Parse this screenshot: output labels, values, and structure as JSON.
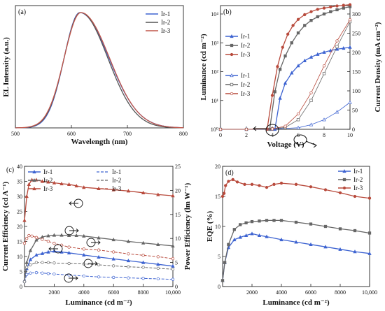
{
  "chart_data": [
    {
      "panel": "(a)",
      "type": "line",
      "xlabel": "Wavelength (nm)",
      "ylabel": "EL Intensity (a.u.)",
      "xlim": [
        500,
        800
      ],
      "xticks": [
        "500",
        "600",
        "700",
        "800"
      ],
      "legend_position": "top-right",
      "series": [
        {
          "name": "Ir-1",
          "color": "#3d63d1",
          "peak": 615,
          "width_left": 28,
          "width_right": 52
        },
        {
          "name": "Ir-2",
          "color": "#555555",
          "peak": 616,
          "width_left": 29,
          "width_right": 49
        },
        {
          "name": "Ir-3",
          "color": "#c0564a",
          "peak": 617,
          "width_left": 30,
          "width_right": 51
        }
      ]
    },
    {
      "panel": "(b)",
      "type": "line",
      "xlabel": "Voltage (V)",
      "ylabel": "Luminance (cd m⁻²)",
      "ylabel_right": "Current Density (mA cm⁻²)",
      "xlim": [
        0,
        10
      ],
      "xticks": [
        "0",
        "2",
        "4",
        "6",
        "8",
        "10"
      ],
      "ylim_log": [
        1,
        10000
      ],
      "yticks_left": [
        "10⁰",
        "10¹",
        "10²",
        "10³",
        "10⁴"
      ],
      "ylim_right": [
        0,
        300
      ],
      "yticks_right": [
        "0",
        "50",
        "100",
        "150",
        "200",
        "250",
        "300"
      ],
      "luminance_series": [
        {
          "name": "Ir-1",
          "color": "#3d63d1",
          "marker": "triangle",
          "x": [
            4.2,
            4.6,
            5,
            5.5,
            6,
            6.5,
            7,
            7.5,
            8,
            8.5,
            9,
            9.5,
            10
          ],
          "y": [
            1,
            12,
            40,
            90,
            160,
            240,
            320,
            400,
            470,
            540,
            600,
            650,
            700
          ]
        },
        {
          "name": "Ir-2",
          "color": "#666666",
          "marker": "square",
          "x": [
            3.8,
            4.2,
            4.6,
            5,
            5.5,
            6,
            6.5,
            7,
            7.5,
            8,
            8.5,
            9,
            9.5,
            10
          ],
          "y": [
            1,
            20,
            120,
            350,
            1000,
            2200,
            4000,
            6000,
            8000,
            10000,
            12000,
            14000,
            16000,
            18000
          ]
        },
        {
          "name": "Ir-3",
          "color": "#b84a3c",
          "marker": "circle",
          "x": [
            3.6,
            4,
            4.4,
            4.8,
            5.2,
            5.6,
            6,
            6.5,
            7,
            7.5,
            8,
            8.5,
            9,
            9.5,
            10
          ],
          "y": [
            1,
            15,
            150,
            700,
            2000,
            4000,
            6500,
            9500,
            12000,
            14500,
            16000,
            17500,
            19000,
            20000,
            21000
          ]
        }
      ],
      "current_series": [
        {
          "name": "Ir-1",
          "color": "#3d63d1",
          "marker": "open-triangle",
          "x": [
            0,
            2,
            4,
            6,
            7,
            8,
            9,
            10
          ],
          "y": [
            0,
            0,
            0.5,
            4,
            12,
            25,
            45,
            70
          ]
        },
        {
          "name": "Ir-2",
          "color": "#666666",
          "marker": "open-square",
          "x": [
            0,
            2,
            4,
            5,
            6,
            7,
            8,
            9,
            10
          ],
          "y": [
            0,
            0,
            1,
            5,
            25,
            75,
            145,
            215,
            280
          ]
        },
        {
          "name": "Ir-3",
          "color": "#b84a3c",
          "marker": "open-circle",
          "x": [
            0,
            2,
            4,
            5,
            6,
            7,
            8,
            9,
            10
          ],
          "y": [
            0,
            0,
            1,
            8,
            40,
            95,
            165,
            230,
            285
          ]
        }
      ]
    },
    {
      "panel": "(c)",
      "type": "line",
      "xlabel": "Luminance (cd m⁻²)",
      "ylabel": "Current Efficiency (cd A⁻¹)",
      "ylabel_right": "Power Efficiency (lm W⁻¹)",
      "xlim": [
        0,
        10000
      ],
      "xticks": [
        "2000",
        "4000",
        "6000",
        "8000",
        "10,000"
      ],
      "ylim": [
        0,
        40
      ],
      "yticks_left": [
        "0",
        "5",
        "10",
        "15",
        "20",
        "25",
        "30",
        "35",
        "40"
      ],
      "ylim_right": [
        0,
        25
      ],
      "yticks_right": [
        "0",
        "5",
        "10",
        "15",
        "20",
        "25"
      ],
      "ce_series": [
        {
          "name": "Ir-1",
          "color": "#3d63d1",
          "x": [
            0,
            150,
            400,
            800,
            1200,
            1600,
            2000,
            2500,
            3000,
            4000,
            5000,
            6000,
            7000,
            8000,
            9000,
            10000
          ],
          "y": [
            2,
            6,
            9,
            10.5,
            11,
            11.5,
            11.8,
            11.5,
            11.2,
            10.5,
            9.8,
            9.2,
            8.6,
            8.0,
            7.4,
            6.8
          ]
        },
        {
          "name": "Ir-2",
          "color": "#666666",
          "x": [
            0,
            150,
            400,
            800,
            1200,
            1600,
            2000,
            2500,
            3000,
            3500,
            4000,
            5000,
            6000,
            7000,
            8000,
            9000,
            10000
          ],
          "y": [
            2,
            8,
            12,
            15.5,
            16.5,
            16.9,
            17.1,
            17.1,
            17.0,
            17.0,
            16.8,
            16.2,
            15.6,
            15.0,
            14.5,
            14.0,
            13.5
          ]
        },
        {
          "name": "Ir-3",
          "color": "#b84a3c",
          "x": [
            0,
            150,
            300,
            500,
            800,
            1200,
            1600,
            2000,
            2500,
            3000,
            3500,
            4000,
            5000,
            6000,
            7000,
            8000,
            9000,
            10000
          ],
          "y": [
            22,
            30,
            34,
            35.5,
            35.5,
            35.0,
            34.8,
            34.5,
            34.2,
            34.0,
            33.5,
            33.0,
            32.6,
            32.2,
            31.8,
            31.2,
            30.6,
            30.2
          ]
        }
      ],
      "pe_series": [
        {
          "name": "Ir-1",
          "color": "#3d63d1",
          "x": [
            0,
            150,
            400,
            800,
            1200,
            1600,
            2000,
            3000,
            4000,
            5000,
            6000,
            7000,
            8000,
            9000,
            10000
          ],
          "y": [
            1,
            2.5,
            2.8,
            2.9,
            2.8,
            2.7,
            2.6,
            2.4,
            2.2,
            2.0,
            1.9,
            1.8,
            1.7,
            1.6,
            1.5
          ]
        },
        {
          "name": "Ir-2",
          "color": "#666666",
          "x": [
            0,
            150,
            400,
            800,
            1200,
            1600,
            2000,
            3000,
            4000,
            5000,
            6000,
            7000,
            8000,
            9000,
            10000
          ],
          "y": [
            1,
            4,
            4.5,
            5.0,
            5.0,
            5.0,
            4.9,
            4.8,
            4.7,
            4.5,
            4.3,
            4.1,
            4.0,
            3.8,
            3.6
          ]
        },
        {
          "name": "Ir-3",
          "color": "#b84a3c",
          "x": [
            0,
            150,
            300,
            500,
            800,
            1200,
            1600,
            2000,
            2500,
            3000,
            4000,
            5000,
            6000,
            7000,
            8000,
            9000,
            10000
          ],
          "y": [
            9,
            10,
            10.6,
            10.5,
            10.2,
            9.8,
            9.4,
            9.0,
            8.6,
            8.2,
            7.8,
            7.6,
            7.2,
            6.8,
            6.5,
            6.2,
            5.8
          ]
        }
      ]
    },
    {
      "panel": "(d)",
      "type": "line",
      "xlabel": "Luminance (cd m⁻²)",
      "ylabel": "EQE (%)",
      "xlim": [
        0,
        10000
      ],
      "xticks": [
        "2000",
        "4000",
        "6000",
        "8000",
        "10,000"
      ],
      "ylim": [
        0,
        20
      ],
      "yticks": [
        "0",
        "5",
        "10",
        "15",
        "20"
      ],
      "legend_position": "top-right",
      "series": [
        {
          "name": "Ir-1",
          "color": "#3d63d1",
          "x": [
            0,
            150,
            400,
            800,
            1200,
            1600,
            2000,
            2500,
            3000,
            4000,
            5000,
            6000,
            7000,
            8000,
            9000,
            10000
          ],
          "y": [
            1,
            4,
            6.5,
            7.8,
            8.2,
            8.5,
            8.8,
            8.5,
            8.3,
            7.8,
            7.4,
            7.0,
            6.6,
            6.2,
            5.8,
            5.5
          ]
        },
        {
          "name": "Ir-2",
          "color": "#666666",
          "x": [
            0,
            150,
            400,
            800,
            1200,
            1600,
            2000,
            2500,
            3000,
            3500,
            4000,
            5000,
            6000,
            7000,
            8000,
            9000,
            10000
          ],
          "y": [
            1,
            4,
            7,
            9.5,
            10.3,
            10.6,
            10.8,
            10.9,
            11.0,
            11.0,
            11.0,
            10.7,
            10.4,
            10.0,
            9.6,
            9.3,
            8.9
          ]
        },
        {
          "name": "Ir-3",
          "color": "#b84a3c",
          "x": [
            0,
            100,
            200,
            400,
            700,
            1000,
            1500,
            2000,
            2500,
            3000,
            3500,
            4000,
            5000,
            6000,
            7000,
            8000,
            9000,
            10000
          ],
          "y": [
            15,
            15.5,
            16.8,
            17.5,
            17.8,
            17.4,
            17.0,
            17.0,
            16.8,
            16.5,
            17.0,
            17.2,
            17.0,
            16.6,
            16.1,
            15.6,
            15.0,
            14.7
          ]
        }
      ]
    }
  ]
}
